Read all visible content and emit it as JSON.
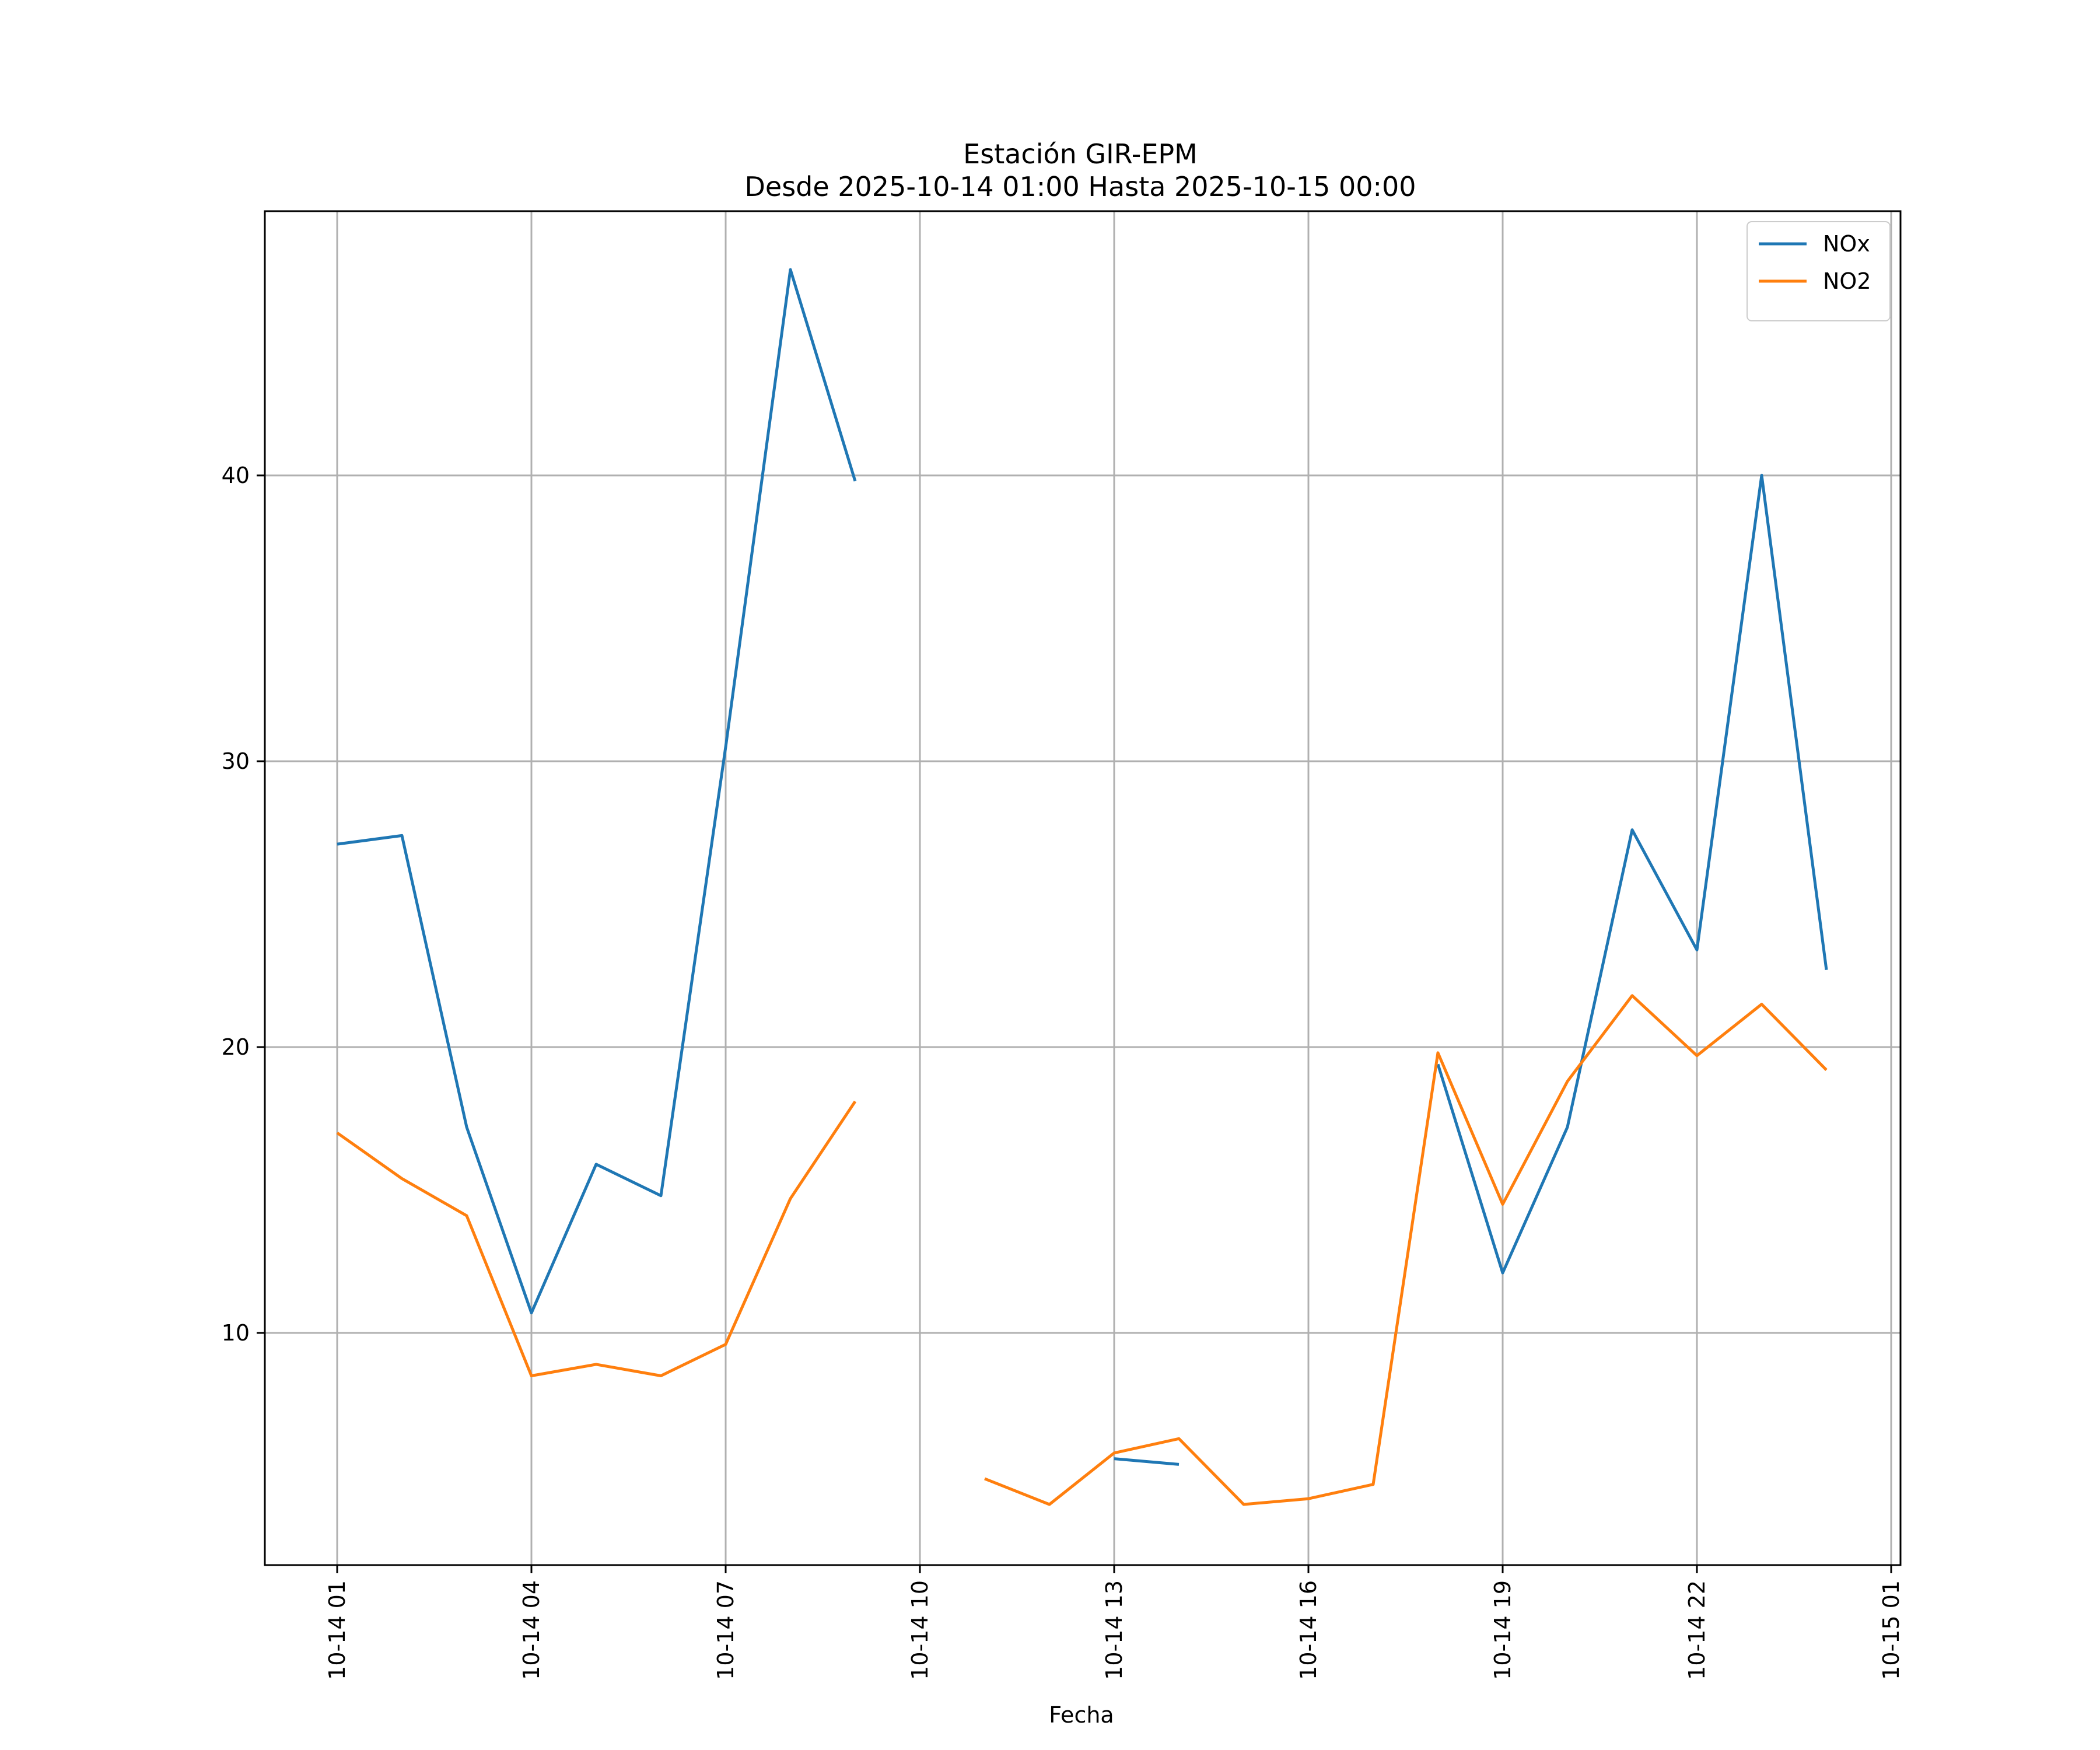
{
  "chart_data": {
    "type": "line",
    "title": "Estación GIR-EPM",
    "subtitle": "Desde 2025-10-14 01:00 Hasta 2025-10-15 00:00",
    "xlabel": "Fecha",
    "ylabel": "",
    "x": [
      "2025-10-14 01:00",
      "2025-10-14 02:00",
      "2025-10-14 03:00",
      "2025-10-14 04:00",
      "2025-10-14 05:00",
      "2025-10-14 06:00",
      "2025-10-14 07:00",
      "2025-10-14 08:00",
      "2025-10-14 09:00",
      "2025-10-14 10:00",
      "2025-10-14 11:00",
      "2025-10-14 12:00",
      "2025-10-14 13:00",
      "2025-10-14 14:00",
      "2025-10-14 15:00",
      "2025-10-14 16:00",
      "2025-10-14 17:00",
      "2025-10-14 18:00",
      "2025-10-14 19:00",
      "2025-10-14 20:00",
      "2025-10-14 21:00",
      "2025-10-14 22:00",
      "2025-10-14 23:00",
      "2025-10-15 00:00"
    ],
    "series": [
      {
        "name": "NOx",
        "color": "#1f77b4",
        "values": [
          27.1,
          27.4,
          17.2,
          10.7,
          15.9,
          14.8,
          30.5,
          47.2,
          39.8,
          null,
          null,
          null,
          5.6,
          5.4,
          null,
          null,
          null,
          19.4,
          12.1,
          17.2,
          27.6,
          23.4,
          40.0,
          22.7
        ]
      },
      {
        "name": "NO2",
        "color": "#ff7f0e",
        "values": [
          17.0,
          15.4,
          14.1,
          8.5,
          8.9,
          8.5,
          9.6,
          14.7,
          18.1,
          null,
          4.9,
          4.0,
          5.8,
          6.3,
          4.0,
          4.2,
          4.7,
          19.8,
          14.5,
          18.8,
          21.8,
          19.7,
          21.5,
          19.2
        ]
      }
    ],
    "x_ticks": [
      "10-14 01",
      "10-14 04",
      "10-14 07",
      "10-14 10",
      "10-14 13",
      "10-14 16",
      "10-14 19",
      "10-14 22",
      "10-15 01"
    ],
    "y_ticks": [
      "10",
      "20",
      "30",
      "40"
    ],
    "ylim": [
      1.9,
      49.4
    ],
    "grid": true,
    "legend": "top-right"
  }
}
